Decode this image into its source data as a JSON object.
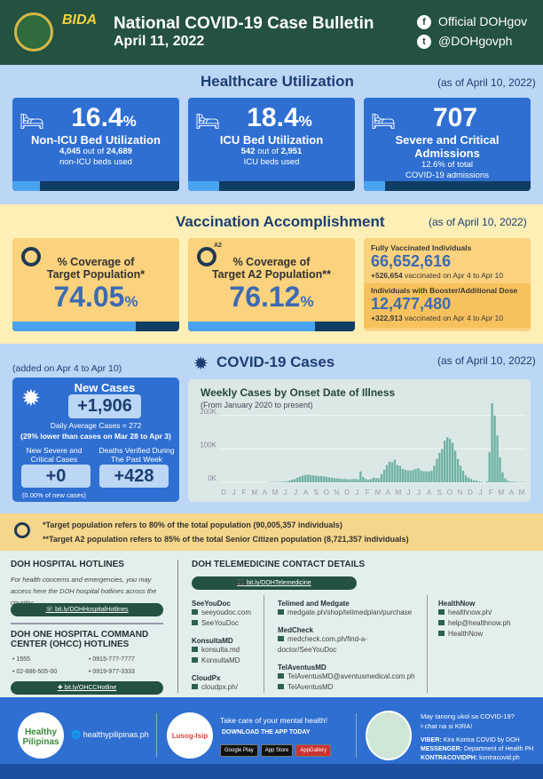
{
  "header": {
    "title": "National COVID-19 Case Bulletin",
    "date": "April 11, 2022",
    "bida": "BIDA",
    "facebook": "Official DOHgov",
    "twitter": "@DOHgovph"
  },
  "healthcare": {
    "title": "Healthcare Utilization",
    "as_of": "(as of April 10, 2022)",
    "cards": [
      {
        "value": "16.4",
        "unit": "%",
        "label": "Non-ICU Bed Utilization",
        "line1_a": "4,045",
        "line1_b": " out of ",
        "line1_c": "24,689",
        "line2": "non-ICU beds used",
        "fill_pct": 16.4,
        "icon": "bed-icon"
      },
      {
        "value": "18.4",
        "unit": "%",
        "label": "ICU Bed Utilization",
        "line1_a": "542",
        "line1_b": " out of ",
        "line1_c": "2,951",
        "line2": "ICU beds used",
        "fill_pct": 18.4,
        "icon": "icu-bed-icon"
      },
      {
        "value": "707",
        "unit": "",
        "label": "Severe and Critical Admissions",
        "line1_a": "",
        "line1_b": "12.6% of total",
        "line1_c": "",
        "line2": "COVID-19 admissions",
        "fill_pct": 12.6,
        "icon": "icu-bed-warning-icon"
      }
    ]
  },
  "vaccination": {
    "title": "Vaccination Accomplishment",
    "as_of": "(as of April 10, 2022)",
    "target": {
      "label1": "% Coverage of",
      "label2": "Target Population*",
      "value": "74.05",
      "unit": "%",
      "fill_pct": 74.05
    },
    "a2": {
      "badge": "A2",
      "label1": "% Coverage of",
      "label2": "Target A2 Population**",
      "value": "76.12",
      "unit": "%",
      "fill_pct": 76.12
    },
    "fully": {
      "label": "Fully Vaccinated Individuals",
      "value": "66,652,616",
      "delta": "+526,654",
      "delta_text": " vaccinated on Apr 4 to Apr 10"
    },
    "booster": {
      "label": "Individuals with Booster/Additional Dose",
      "value": "12,477,480",
      "delta": "+322,913",
      "delta_text": " vaccinated on Apr 4 to Apr 10"
    }
  },
  "cases": {
    "title": "COVID-19 Cases",
    "as_of": "(as of April 10, 2022)",
    "added": "(added on Apr 4 to Apr 10)",
    "new_label": "New Cases",
    "new_value": "+1,906",
    "daily_avg": "Daily Average Cases = 272",
    "comparison": "(29% lower than cases on Mar 28 to Apr 3)",
    "severe_label": "New Severe and Critical Cases",
    "severe_value": "+0",
    "severe_pct": "(0.00% of new cases)",
    "deaths_label": "Deaths Verified During The Past Week",
    "deaths_value": "+428"
  },
  "chart_data": {
    "type": "bar",
    "title": "Weekly Cases by Onset Date of Illness",
    "subtitle": "(From January 2020 to present)",
    "y_ticks": [
      "0K",
      "100K",
      "200K"
    ],
    "ylim": [
      0,
      250000
    ],
    "grid": true,
    "x_ticks": [
      "D",
      "J",
      "F",
      "M",
      "A",
      "M",
      "J",
      "J",
      "A",
      "S",
      "O",
      "N",
      "D",
      "J",
      "F",
      "M",
      "A",
      "M",
      "J",
      "J",
      "A",
      "S",
      "O",
      "N",
      "D",
      "J",
      "F",
      "M",
      "A",
      "M"
    ],
    "values_thousands": [
      0,
      0,
      0,
      0,
      0,
      0,
      0,
      0,
      0,
      0,
      0,
      0,
      0,
      0,
      0,
      0,
      0,
      0,
      0.5,
      1,
      1,
      1,
      1.5,
      2,
      2,
      3,
      5,
      8,
      10,
      14,
      17,
      20,
      22,
      23,
      22,
      21,
      20,
      19,
      19,
      18,
      17,
      15,
      14,
      13,
      12,
      11,
      10,
      10,
      9,
      9,
      10,
      10,
      9,
      33,
      16,
      10,
      8,
      10,
      14,
      13,
      12,
      25,
      38,
      52,
      62,
      60,
      68,
      52,
      50,
      40,
      38,
      36,
      35,
      37,
      40,
      42,
      35,
      33,
      33,
      33,
      35,
      50,
      70,
      88,
      100,
      125,
      135,
      130,
      118,
      95,
      70,
      50,
      35,
      20,
      14,
      10,
      6,
      5,
      3,
      2,
      0,
      3,
      90,
      237,
      200,
      140,
      75,
      30,
      12,
      5,
      3,
      2,
      2,
      1,
      1,
      1
    ]
  },
  "footnotes": {
    "f1": "*Target population refers to 80% of the total population (90,005,357 individuals)",
    "f2": "**Target A2 population refers to 85% of the total Senior Citizen population (8,721,357 individuals)"
  },
  "hotlines": {
    "title": "DOH HOSPITAL HOTLINES",
    "desc": "For health concerns and emergencies, you may access here the DOH hospital hotlines across the country:",
    "link": "bit.ly/DOHHospitalHotlines",
    "ohcc_title": "DOH ONE HOSPITAL COMMAND CENTER (OHCC) HOTLINES",
    "numbers": [
      "• 1555",
      "• 0915-777-7777",
      "• 02-886-505-00",
      "• 0919-977-3333"
    ],
    "ohcc_link": "bit.ly/OHCCHotline"
  },
  "telemedicine": {
    "title": "DOH TELEMEDICINE CONTACT DETAILS",
    "link": "bit.ly/DOHTelemedicine",
    "col1": [
      {
        "name": "SeeYouDoc",
        "items": [
          "seeyoudoc.com",
          "SeeYouDoc"
        ]
      },
      {
        "name": "KonsultaMD",
        "items": [
          "konsulta.md",
          "KonsultaMD"
        ]
      },
      {
        "name": "CloudPx",
        "items": [
          "cloudpx.ph/"
        ]
      }
    ],
    "col2": [
      {
        "name": "Telimed and Medgate",
        "items": [
          "medgate.ph/shop/telimedplan/purchase"
        ]
      },
      {
        "name": "MedCheck",
        "items": [
          "medcheck.com.ph/find-a-doctor/SeeYouDoc"
        ]
      },
      {
        "name": "TelAventusMD",
        "items": [
          "TelAventusMD@aventusmedical.com.ph",
          "TelAventusMD"
        ]
      }
    ],
    "col3": [
      {
        "name": "HealthNow",
        "items": [
          "healthnow.ph/",
          "help@healthnow.ph",
          "HealthNow"
        ]
      }
    ]
  },
  "footer": {
    "logo": "Healthy Pilipinas",
    "site": "healthypilipinas.ph",
    "app_logo": "Lusog-Isip",
    "mental": "Take care of your mental health!",
    "download": "DOWNLOAD THE APP TODAY",
    "stores": [
      "Google Play",
      "App Store",
      "AppGallery"
    ],
    "kira1": "May tanong ukol sa COVID-19?",
    "kira2": "I-chat na si KIRA!",
    "viber_k": "VIBER:",
    "viber_v": "Kira Kontra COVID by DOH",
    "msg_k": "MESSENGER:",
    "msg_v": "Department of Health PH",
    "kc_k": "KONTRACOVIDPH:",
    "kc_v": "kontracovid.ph"
  },
  "colors": {
    "header": "#245140",
    "card_blue": "#2f6fd1",
    "light_blue": "#bcd6f5",
    "yellow": "#fdefb5",
    "card_yellow": "#fbd27e",
    "bar": "#6fb3a5"
  }
}
